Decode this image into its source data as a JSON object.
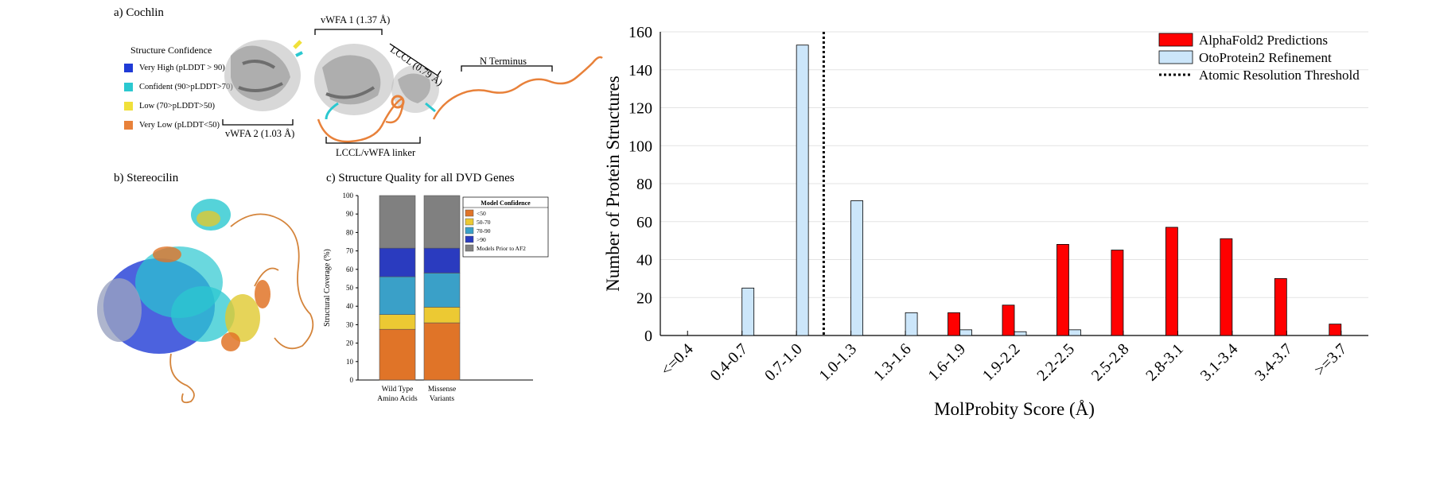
{
  "panel_a": {
    "title": "a) Cochlin",
    "legend_title": "Structure Confidence",
    "legend": [
      {
        "label": "Very High (pLDDT > 90)",
        "color": "#1f3bd6"
      },
      {
        "label": "Confident (90>pLDDT>70)",
        "color": "#2bc8d0"
      },
      {
        "label": "Low (70>pLDDT>50)",
        "color": "#f0e03a"
      },
      {
        "label": "Very Low (pLDDT<50)",
        "color": "#e8813a"
      }
    ],
    "annotations": {
      "vwfa1": "vWFA 1 (1.37 Å)",
      "vwfa2": "vWFA 2 (1.03 Å)",
      "lccl": "LCCL (0.79 Å)",
      "linker": "LCCL/vWFA linker",
      "nterm": "N Terminus"
    }
  },
  "panel_b": {
    "title": "b) Stereocilin"
  },
  "panel_c": {
    "title": "c) Structure Quality for all DVD Genes",
    "legend_title": "Model Confidence",
    "chart_data": {
      "type": "bar",
      "stacked": true,
      "categories": [
        "Wild Type Amino Acids",
        "Missense Variants"
      ],
      "category_lines": [
        [
          "Wild Type",
          "Amino Acids"
        ],
        [
          "Missense",
          "Variants"
        ]
      ],
      "series": [
        {
          "name": "<50",
          "color": "#e07428",
          "values": [
            27.5,
            31.0
          ]
        },
        {
          "name": "50-70",
          "color": "#ecc933",
          "values": [
            8.0,
            8.5
          ]
        },
        {
          "name": "70-90",
          "color": "#3aa0c8",
          "values": [
            20.5,
            18.5
          ]
        },
        {
          "name": ">90",
          "color": "#2a3bbf",
          "values": [
            15.5,
            13.5
          ]
        },
        {
          "name": "Models Prior to AF2",
          "color": "#808080",
          "values": [
            28.5,
            28.5
          ]
        }
      ],
      "ylabel": "Structural Coverage (%)",
      "ylim": [
        0,
        100
      ],
      "yticks": [
        0,
        10,
        20,
        30,
        40,
        50,
        60,
        70,
        80,
        90,
        100
      ]
    }
  },
  "panel_d": {
    "chart_data": {
      "type": "bar",
      "categories": [
        "<=0.4",
        "0.4-0.7",
        "0.7-1.0",
        "1.0-1.3",
        "1.3-1.6",
        "1.6-1.9",
        "1.9-2.2",
        "2.2-2.5",
        "2.5-2.8",
        "2.8-3.1",
        "3.1-3.4",
        "3.4-3.7",
        ">=3.7"
      ],
      "series": [
        {
          "name": "AlphaFold2 Predictions",
          "color": "#ff0000",
          "values": [
            0,
            0,
            0,
            0,
            0,
            12,
            16,
            48,
            45,
            57,
            51,
            30,
            6
          ]
        },
        {
          "name": "OtoProtein2 Refinement",
          "color": "#cce6fa",
          "values": [
            0,
            25,
            153,
            71,
            12,
            3,
            2,
            3,
            0,
            0,
            0,
            0,
            0
          ]
        }
      ],
      "threshold": {
        "name": "Atomic Resolution Threshold",
        "position_between": [
          "0.7-1.0",
          "1.0-1.3"
        ]
      },
      "xlabel": "MolProbity Score (Å)",
      "ylabel": "Number of Protein Structures",
      "ylim": [
        0,
        160
      ],
      "yticks": [
        0,
        20,
        40,
        60,
        80,
        100,
        120,
        140,
        160
      ],
      "grid": true,
      "legend_position": "top-right"
    }
  }
}
